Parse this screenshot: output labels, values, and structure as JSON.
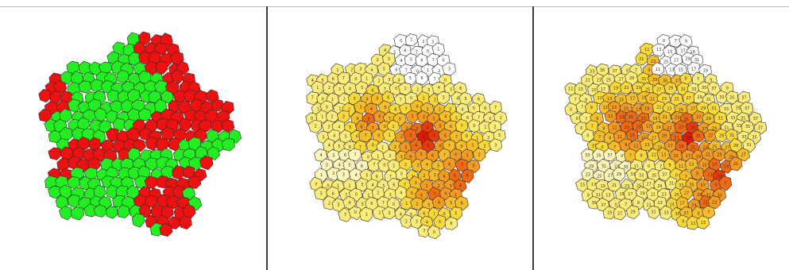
{
  "colors": {
    "background": "#ffffff",
    "cell_border": "#2b2b2b",
    "panel1": {
      "green": "#22ee22",
      "red": "#ee1111"
    },
    "scale": [
      "#ffffff",
      "#fdf6b8",
      "#fbec7a",
      "#f8d83a",
      "#f6bd2a",
      "#f29a22",
      "#ee6a14",
      "#e83a0a",
      "#e01a05"
    ]
  },
  "panels": [
    {
      "id": "binary",
      "cells": [
        {
          "c": "r"
        },
        {
          "c": "r"
        },
        {
          "c": "r"
        },
        {
          "c": "g"
        },
        {
          "c": "g"
        },
        {
          "c": "r"
        },
        {
          "c": "r"
        },
        {
          "c": "g"
        },
        {
          "c": "g"
        },
        {
          "c": "r"
        },
        {
          "c": "g"
        },
        {
          "c": "g"
        },
        {
          "c": "r"
        },
        {
          "c": "g"
        },
        {
          "c": "r"
        },
        {
          "c": "g"
        },
        {
          "c": "g"
        },
        {
          "c": "g"
        },
        {
          "c": "r"
        },
        {
          "c": "g"
        },
        {
          "c": "g"
        },
        {
          "c": "r"
        },
        {
          "c": "g"
        },
        {
          "c": "g"
        }
      ]
    },
    {
      "id": "count-a",
      "labels": [
        "0",
        "1",
        "2",
        "3",
        "4",
        "5",
        "6",
        "7"
      ]
    },
    {
      "id": "count-b",
      "labels": [
        "0",
        "7",
        "9",
        "11",
        "13",
        "15",
        "17",
        "19",
        "21",
        "23",
        "25",
        "27",
        "29",
        "31",
        "33",
        "35",
        "37"
      ]
    }
  ]
}
